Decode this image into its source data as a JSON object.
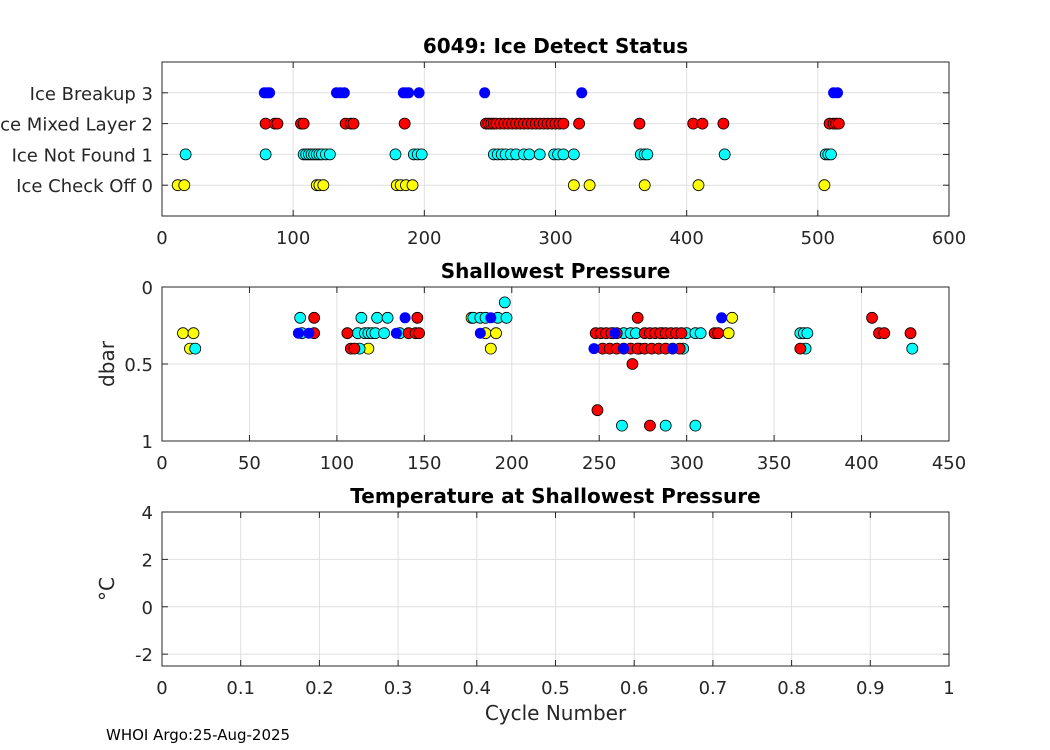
{
  "colors": {
    "ice_breakup": "#0000ff",
    "mixed_layer": "#ff0000",
    "not_found": "#00ffff",
    "check_off": "#ffff00"
  },
  "footer": {
    "text": "WHOI Argo:25-Aug-2025"
  },
  "chart_data": [
    {
      "id": "ice",
      "type": "scatter",
      "title": "6049: Ice Detect Status",
      "xlabel": "",
      "ylabel": "",
      "xlim": [
        0,
        600
      ],
      "ylim": [
        -1,
        4
      ],
      "y_reversed": false,
      "grid": true,
      "xticks": [
        0,
        100,
        200,
        300,
        400,
        500,
        600
      ],
      "xtick_labels": [
        "0",
        "100",
        "200",
        "300",
        "400",
        "500",
        "600"
      ],
      "yticks": [
        0,
        1,
        2,
        3
      ],
      "ytick_labels": [
        "Ice Check Off 0",
        "Ice Not Found 1",
        "Ice Mixed Layer 2",
        "Ice Breakup 3"
      ],
      "series": [
        {
          "name": "Ice Breakup 3",
          "color": "#0000ff",
          "edge": false,
          "points": [
            [
              78,
              3
            ],
            [
              80,
              3
            ],
            [
              82,
              3
            ],
            [
              133,
              3
            ],
            [
              136,
              3
            ],
            [
              139,
              3
            ],
            [
              184,
              3
            ],
            [
              186,
              3
            ],
            [
              188,
              3
            ],
            [
              196,
              3
            ],
            [
              246,
              3
            ],
            [
              320,
              3
            ],
            [
              512,
              3
            ],
            [
              515,
              3
            ]
          ]
        },
        {
          "name": "Ice Mixed Layer 2",
          "color": "#ff0000",
          "edge": true,
          "points": [
            [
              79,
              2
            ],
            [
              86,
              2
            ],
            [
              88,
              2
            ],
            [
              106,
              2
            ],
            [
              108,
              2
            ],
            [
              140,
              2
            ],
            [
              144,
              2
            ],
            [
              146,
              2
            ],
            [
              185,
              2
            ],
            [
              247,
              2
            ],
            [
              249,
              2
            ],
            [
              251,
              2
            ],
            [
              253,
              2
            ],
            [
              255,
              2
            ],
            [
              258,
              2
            ],
            [
              261,
              2
            ],
            [
              264,
              2
            ],
            [
              267,
              2
            ],
            [
              270,
              2
            ],
            [
              273,
              2
            ],
            [
              276,
              2
            ],
            [
              279,
              2
            ],
            [
              282,
              2
            ],
            [
              285,
              2
            ],
            [
              288,
              2
            ],
            [
              291,
              2
            ],
            [
              294,
              2
            ],
            [
              297,
              2
            ],
            [
              300,
              2
            ],
            [
              303,
              2
            ],
            [
              306,
              2
            ],
            [
              318,
              2
            ],
            [
              364,
              2
            ],
            [
              405,
              2
            ],
            [
              412,
              2
            ],
            [
              428,
              2
            ],
            [
              509,
              2
            ],
            [
              512,
              2
            ],
            [
              514,
              2
            ],
            [
              516,
              2
            ]
          ]
        },
        {
          "name": "Ice Not Found 1",
          "color": "#00ffff",
          "edge": true,
          "points": [
            [
              18,
              1
            ],
            [
              79,
              1
            ],
            [
              108,
              1
            ],
            [
              110,
              1
            ],
            [
              112,
              1
            ],
            [
              114,
              1
            ],
            [
              116,
              1
            ],
            [
              118,
              1
            ],
            [
              120,
              1
            ],
            [
              122,
              1
            ],
            [
              125,
              1
            ],
            [
              128,
              1
            ],
            [
              178,
              1
            ],
            [
              192,
              1
            ],
            [
              195,
              1
            ],
            [
              198,
              1
            ],
            [
              253,
              1
            ],
            [
              256,
              1
            ],
            [
              259,
              1
            ],
            [
              262,
              1
            ],
            [
              266,
              1
            ],
            [
              270,
              1
            ],
            [
              276,
              1
            ],
            [
              280,
              1
            ],
            [
              288,
              1
            ],
            [
              299,
              1
            ],
            [
              302,
              1
            ],
            [
              306,
              1
            ],
            [
              314,
              1
            ],
            [
              365,
              1
            ],
            [
              368,
              1
            ],
            [
              370,
              1
            ],
            [
              429,
              1
            ],
            [
              506,
              1
            ],
            [
              508,
              1
            ],
            [
              510,
              1
            ]
          ]
        },
        {
          "name": "Ice Check Off 0",
          "color": "#ffff00",
          "edge": true,
          "points": [
            [
              12,
              0
            ],
            [
              17,
              0
            ],
            [
              118,
              0
            ],
            [
              120,
              0
            ],
            [
              123,
              0
            ],
            [
              179,
              0
            ],
            [
              182,
              0
            ],
            [
              186,
              0
            ],
            [
              191,
              0
            ],
            [
              314,
              0
            ],
            [
              326,
              0
            ],
            [
              368,
              0
            ],
            [
              409,
              0
            ],
            [
              505,
              0
            ]
          ]
        }
      ]
    },
    {
      "id": "pressure",
      "type": "scatter",
      "title": "Shallowest Pressure",
      "xlabel": "",
      "ylabel": "dbar",
      "xlim": [
        0,
        450
      ],
      "ylim": [
        0,
        1
      ],
      "y_reversed": true,
      "grid": true,
      "xticks": [
        0,
        50,
        100,
        150,
        200,
        250,
        300,
        350,
        400,
        450
      ],
      "xtick_labels": [
        "0",
        "50",
        "100",
        "150",
        "200",
        "250",
        "300",
        "350",
        "400",
        "450"
      ],
      "yticks": [
        0,
        0.5,
        1
      ],
      "ytick_labels": [
        "0",
        "0.5",
        "1"
      ],
      "series": [
        {
          "name": "Ice Check Off 0",
          "color": "#ffff00",
          "edge": true,
          "points": [
            [
              12,
              0.3
            ],
            [
              18,
              0.3
            ],
            [
              16,
              0.4
            ],
            [
              118,
              0.4
            ],
            [
              185,
              0.3
            ],
            [
              188,
              0.4
            ],
            [
              191,
              0.3
            ],
            [
              177,
              0.2
            ],
            [
              326,
              0.2
            ],
            [
              324,
              0.3
            ]
          ]
        },
        {
          "name": "Ice Not Found 1",
          "color": "#00ffff",
          "edge": true,
          "points": [
            [
              19,
              0.4
            ],
            [
              79,
              0.2
            ],
            [
              80,
              0.3
            ],
            [
              112,
              0.3
            ],
            [
              113,
              0.4
            ],
            [
              114,
              0.2
            ],
            [
              116,
              0.3
            ],
            [
              118,
              0.3
            ],
            [
              120,
              0.3
            ],
            [
              122,
              0.3
            ],
            [
              123,
              0.2
            ],
            [
              127,
              0.3
            ],
            [
              129,
              0.2
            ],
            [
              136,
              0.3
            ],
            [
              178,
              0.2
            ],
            [
              182,
              0.2
            ],
            [
              185,
              0.2
            ],
            [
              192,
              0.2
            ],
            [
              196,
              0.1
            ],
            [
              197,
              0.2
            ],
            [
              258,
              0.3
            ],
            [
              264,
              0.3
            ],
            [
              268,
              0.3
            ],
            [
              271,
              0.3
            ],
            [
              273,
              0.4
            ],
            [
              286,
              0.3
            ],
            [
              292,
              0.4
            ],
            [
              298,
              0.4
            ],
            [
              300,
              0.3
            ],
            [
              305,
              0.3
            ],
            [
              308,
              0.3
            ],
            [
              365,
              0.3
            ],
            [
              367,
              0.3
            ],
            [
              369,
              0.3
            ],
            [
              368,
              0.4
            ],
            [
              429,
              0.4
            ],
            [
              263,
              0.9
            ],
            [
              288,
              0.9
            ],
            [
              305,
              0.9
            ]
          ]
        },
        {
          "name": "Ice Mixed Layer 2",
          "color": "#ff0000",
          "edge": true,
          "points": [
            [
              87,
              0.2
            ],
            [
              87,
              0.3
            ],
            [
              106,
              0.3
            ],
            [
              108,
              0.4
            ],
            [
              110,
              0.4
            ],
            [
              141,
              0.3
            ],
            [
              145,
              0.3
            ],
            [
              146,
              0.2
            ],
            [
              147,
              0.3
            ],
            [
              248,
              0.3
            ],
            [
              251,
              0.3
            ],
            [
              254,
              0.3
            ],
            [
              257,
              0.3
            ],
            [
              260,
              0.3
            ],
            [
              252,
              0.4
            ],
            [
              256,
              0.4
            ],
            [
              260,
              0.4
            ],
            [
              264,
              0.4
            ],
            [
              268,
              0.4
            ],
            [
              272,
              0.4
            ],
            [
              269,
              0.5
            ],
            [
              272,
              0.2
            ],
            [
              276,
              0.3
            ],
            [
              279,
              0.3
            ],
            [
              282,
              0.3
            ],
            [
              285,
              0.3
            ],
            [
              288,
              0.3
            ],
            [
              291,
              0.3
            ],
            [
              294,
              0.3
            ],
            [
              297,
              0.3
            ],
            [
              276,
              0.4
            ],
            [
              280,
              0.4
            ],
            [
              284,
              0.4
            ],
            [
              288,
              0.4
            ],
            [
              296,
              0.4
            ],
            [
              316,
              0.3
            ],
            [
              318,
              0.3
            ],
            [
              365,
              0.4
            ],
            [
              406,
              0.2
            ],
            [
              410,
              0.3
            ],
            [
              413,
              0.3
            ],
            [
              428,
              0.3
            ],
            [
              249,
              0.8
            ],
            [
              279,
              0.9
            ]
          ]
        },
        {
          "name": "Ice Breakup 3",
          "color": "#0000ff",
          "edge": false,
          "points": [
            [
              78,
              0.3
            ],
            [
              84,
              0.3
            ],
            [
              134,
              0.3
            ],
            [
              139,
              0.2
            ],
            [
              182,
              0.3
            ],
            [
              188,
              0.2
            ],
            [
              247,
              0.4
            ],
            [
              259,
              0.3
            ],
            [
              264,
              0.4
            ],
            [
              292,
              0.4
            ],
            [
              320,
              0.2
            ]
          ]
        }
      ]
    },
    {
      "id": "temperature",
      "type": "scatter",
      "title": "Temperature at Shallowest Pressure",
      "xlabel": "Cycle Number",
      "ylabel": "°C",
      "xlim": [
        0,
        1
      ],
      "ylim": [
        -2.5,
        4
      ],
      "y_reversed": false,
      "grid": true,
      "xticks": [
        0,
        0.1,
        0.2,
        0.3,
        0.4,
        0.5,
        0.6,
        0.7,
        0.8,
        0.9,
        1
      ],
      "xtick_labels": [
        "0",
        "0.1",
        "0.2",
        "0.3",
        "0.4",
        "0.5",
        "0.6",
        "0.7",
        "0.8",
        "0.9",
        "1"
      ],
      "yticks": [
        -2,
        0,
        2,
        4
      ],
      "ytick_labels": [
        "-2",
        "0",
        "2",
        "4"
      ],
      "series": []
    }
  ]
}
